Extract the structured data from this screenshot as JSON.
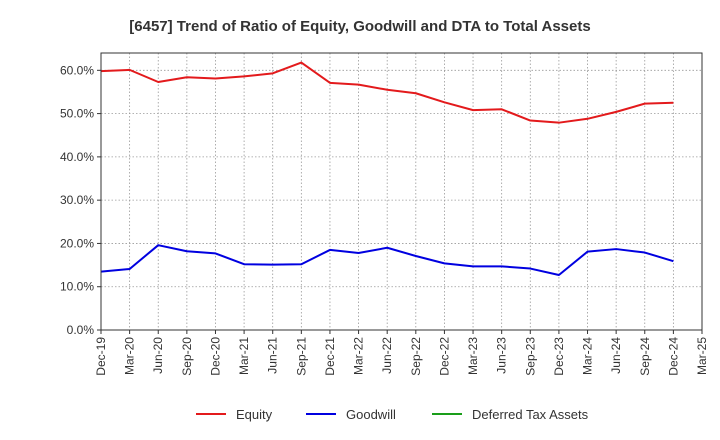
{
  "chart_data": {
    "type": "line",
    "title": "[6457]  Trend of Ratio of Equity, Goodwill and DTA to Total Assets",
    "xlabel": "",
    "ylabel": "",
    "ylim": [
      0,
      64
    ],
    "yticks": [
      0,
      10,
      20,
      30,
      40,
      50,
      60
    ],
    "ytick_labels": [
      "0.0%",
      "10.0%",
      "20.0%",
      "30.0%",
      "40.0%",
      "50.0%",
      "60.0%"
    ],
    "grid": true,
    "legend_position": "bottom-center",
    "categories": [
      "Dec-19",
      "Mar-20",
      "Jun-20",
      "Sep-20",
      "Dec-20",
      "Mar-21",
      "Jun-21",
      "Sep-21",
      "Dec-21",
      "Mar-22",
      "Jun-22",
      "Sep-22",
      "Dec-22",
      "Mar-23",
      "Jun-23",
      "Sep-23",
      "Dec-23",
      "Mar-24",
      "Jun-24",
      "Sep-24",
      "Dec-24",
      "Mar-25"
    ],
    "series": [
      {
        "name": "Equity",
        "color": "#e31a1c",
        "values": [
          59.8,
          60.1,
          57.3,
          58.4,
          58.1,
          58.6,
          59.3,
          61.8,
          57.1,
          56.7,
          55.5,
          54.7,
          52.6,
          50.8,
          51.0,
          48.4,
          47.9,
          48.8,
          50.4,
          52.3,
          52.5,
          null
        ]
      },
      {
        "name": "Goodwill",
        "color": "#0000e0",
        "values": [
          13.5,
          14.1,
          19.6,
          18.2,
          17.7,
          15.2,
          15.1,
          15.2,
          18.5,
          17.8,
          19.0,
          17.1,
          15.4,
          14.7,
          14.7,
          14.2,
          12.7,
          18.1,
          18.7,
          17.9,
          15.9,
          null
        ]
      },
      {
        "name": "Deferred Tax Assets",
        "color": "#1a9e1a",
        "values": [
          null,
          null,
          null,
          null,
          null,
          null,
          null,
          null,
          null,
          null,
          null,
          null,
          null,
          null,
          null,
          null,
          null,
          null,
          null,
          null,
          null,
          null
        ]
      }
    ]
  }
}
